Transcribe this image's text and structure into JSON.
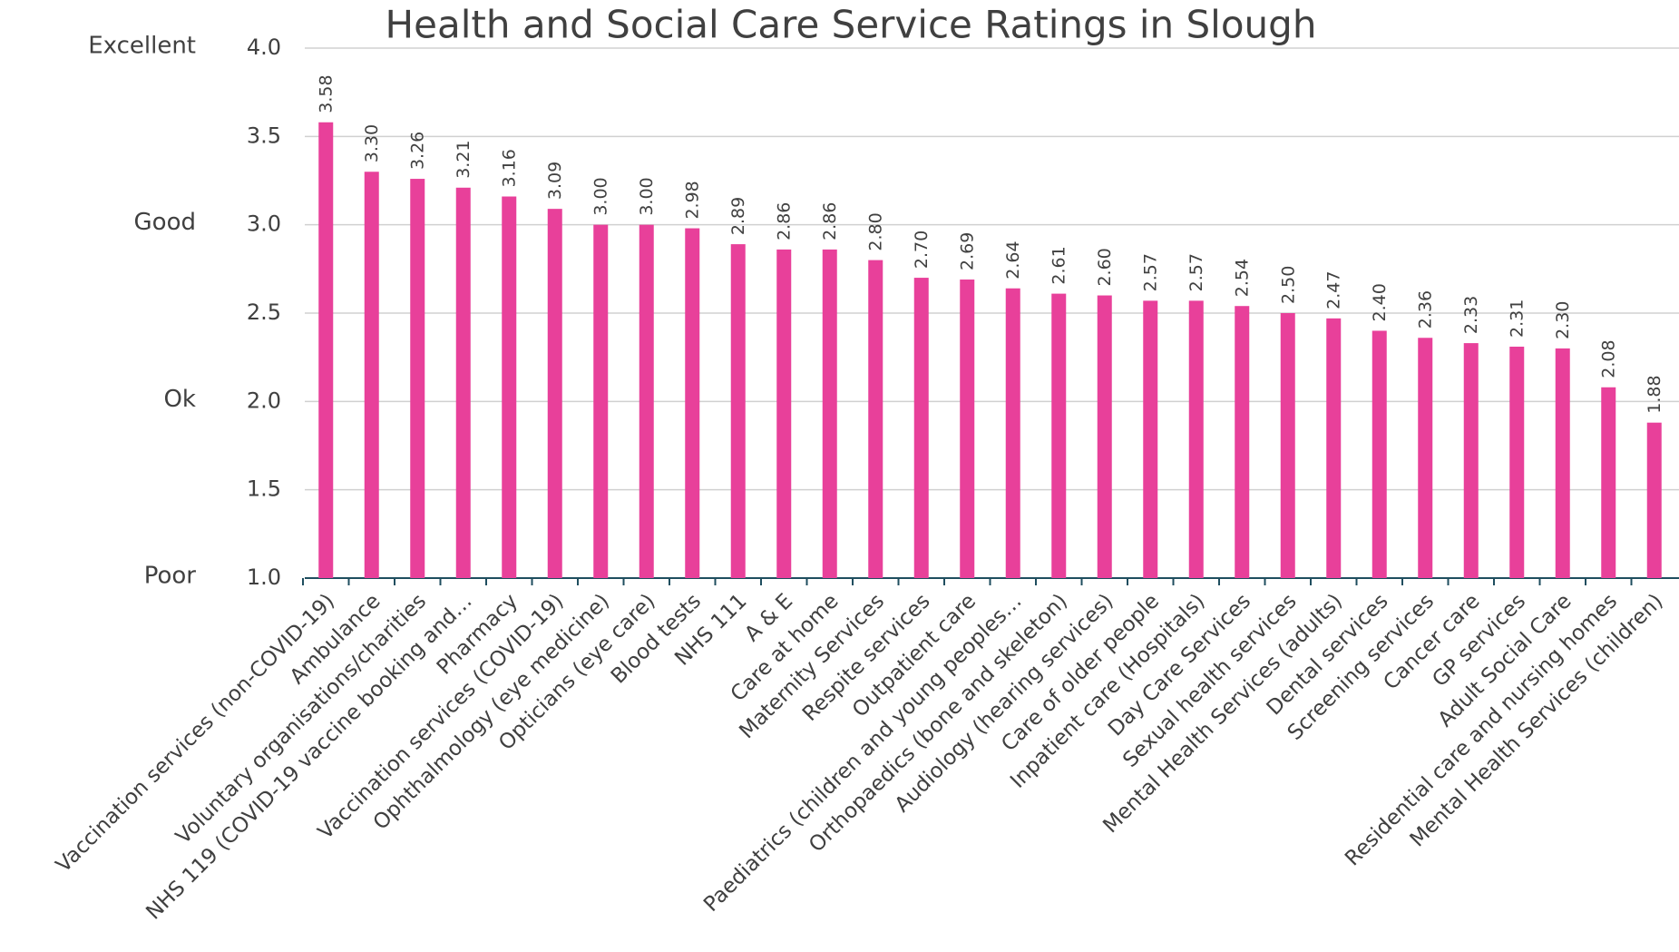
{
  "chart_data": {
    "type": "bar",
    "title": "Health and Social Care Service Ratings in Slough",
    "categories": [
      "Vaccination services (non-COVID-19)",
      "Ambulance",
      "Voluntary organisations/charities",
      "NHS 119 (COVID-19 vaccine booking and…",
      "Pharmacy",
      "Vaccination services (COVID-19)",
      "Ophthalmology (eye medicine)",
      "Opticians (eye care)",
      "Blood tests",
      "NHS 111",
      "A & E",
      "Care at home",
      "Maternity Services",
      "Respite services",
      "Outpatient care",
      "Paediatrics (children and young peoples…",
      "Orthopaedics (bone and skeleton)",
      "Audiology (hearing services)",
      "Care of older people",
      "Inpatient care (Hospitals)",
      "Day Care Services",
      "Sexual health services",
      "Mental Health Services (adults)",
      "Dental services",
      "Screening services",
      "Cancer care",
      "GP services",
      "Adult Social Care",
      "Residential care and nursing homes",
      "Mental Health Services (children)"
    ],
    "values": [
      3.58,
      3.3,
      3.26,
      3.21,
      3.16,
      3.09,
      3.0,
      3.0,
      2.98,
      2.89,
      2.86,
      2.86,
      2.8,
      2.7,
      2.69,
      2.64,
      2.61,
      2.6,
      2.57,
      2.57,
      2.54,
      2.5,
      2.47,
      2.4,
      2.36,
      2.33,
      2.31,
      2.3,
      2.08,
      1.88
    ],
    "value_labels": [
      "3.58",
      "3.30",
      "3.26",
      "3.21",
      "3.16",
      "3.09",
      "3.00",
      "3.00",
      "2.98",
      "2.89",
      "2.86",
      "2.86",
      "2.80",
      "2.70",
      "2.69",
      "2.64",
      "2.61",
      "2.60",
      "2.57",
      "2.57",
      "2.54",
      "2.50",
      "2.47",
      "2.40",
      "2.36",
      "2.33",
      "2.31",
      "2.30",
      "2.08",
      "1.88"
    ],
    "color": "#e8409a",
    "ylim": [
      1.0,
      4.0
    ],
    "yticks": [
      {
        "value": 1.0,
        "label": "1.0"
      },
      {
        "value": 1.5,
        "label": "1.5"
      },
      {
        "value": 2.0,
        "label": "2.0"
      },
      {
        "value": 2.5,
        "label": "2.5"
      },
      {
        "value": 3.0,
        "label": "3.0"
      },
      {
        "value": 3.5,
        "label": "3.5"
      },
      {
        "value": 4.0,
        "label": "4.0"
      }
    ],
    "rating_labels": [
      {
        "value": 4.0,
        "label": "Excellent"
      },
      {
        "value": 3.0,
        "label": "Good"
      },
      {
        "value": 2.0,
        "label": "Ok"
      },
      {
        "value": 1.0,
        "label": "Poor"
      }
    ],
    "grid": true
  }
}
